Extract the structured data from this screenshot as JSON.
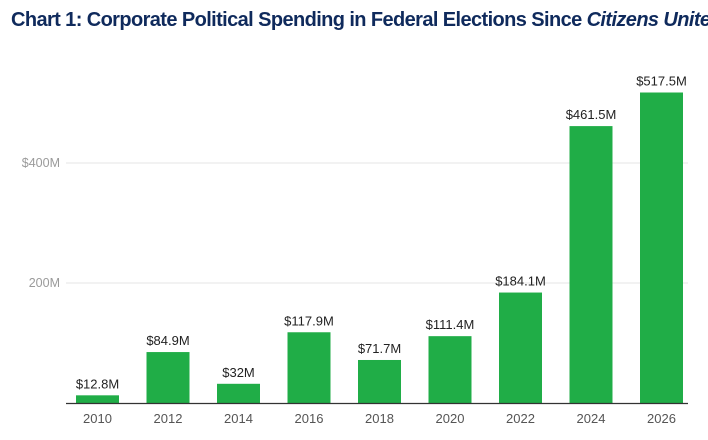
{
  "chart_data": {
    "type": "bar",
    "title_main": "Chart 1: Corporate Political Spending in Federal Elections Since ",
    "title_italic": "Citizens United",
    "categories": [
      "2010",
      "2012",
      "2014",
      "2016",
      "2018",
      "2020",
      "2022",
      "2024",
      "2026"
    ],
    "values": [
      12.8,
      84.9,
      32,
      117.9,
      71.7,
      111.4,
      184.1,
      461.5,
      517.5
    ],
    "data_labels": [
      "$12.8M",
      "$84.9M",
      "$32M",
      "$117.9M",
      "$71.7M",
      "$111.4M",
      "$184.1M",
      "$461.5M",
      "$517.5M"
    ],
    "value_unit": "millions USD",
    "yticks": [
      {
        "value": 200,
        "label": "200M"
      },
      {
        "value": 400,
        "label": "$400M"
      }
    ],
    "ylim": [
      0,
      540
    ],
    "grid": true,
    "xlabel": "",
    "ylabel": "",
    "colors": {
      "bar": "#20ad47",
      "grid": "#e6e6e6",
      "axis": "#333333"
    }
  }
}
